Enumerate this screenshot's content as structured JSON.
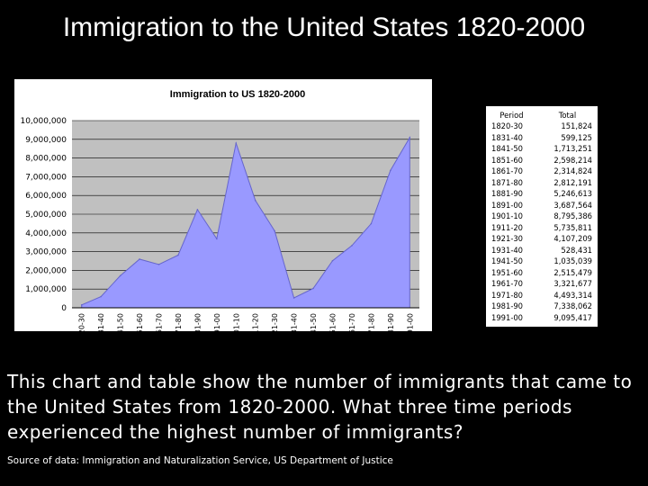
{
  "slide": {
    "title": "Immigration to the United States 1820-2000",
    "question": "This chart and table show the number of immigrants that came to the United States from 1820-2000.  What three time periods experienced the highest number of immigrants?",
    "source": "Source of data:  Immigration and Naturalization Service, US Department of Justice"
  },
  "colors": {
    "background": "#000000",
    "plot_area": "#c0c0c0",
    "area_fill": "#9999ff",
    "area_line": "#6666cc"
  },
  "chart_data": {
    "type": "area",
    "title": "Immigration to US 1820-2000",
    "xlabel": "",
    "ylabel": "",
    "ylim": [
      0,
      10000000
    ],
    "yticks": [
      0,
      1000000,
      2000000,
      3000000,
      4000000,
      5000000,
      6000000,
      7000000,
      8000000,
      9000000,
      10000000
    ],
    "ytick_labels": [
      "0",
      "1,000,000",
      "2,000,000",
      "3,000,000",
      "4,000,000",
      "5,000,000",
      "6,000,000",
      "7,000,000",
      "8,000,000",
      "9,000,000",
      "10,000,000"
    ],
    "grid": true,
    "legend": "none",
    "categories": [
      "1820-30",
      "1831-40",
      "1841-50",
      "1851-60",
      "1861-70",
      "1871-80",
      "1881-90",
      "1891-00",
      "1901-10",
      "1911-20",
      "1921-30",
      "1931-40",
      "1941-50",
      "1951-60",
      "1961-70",
      "1971-80",
      "1981-90",
      "1991-00"
    ],
    "values": [
      151824,
      599125,
      1713251,
      2598214,
      2314824,
      2812191,
      5246613,
      3687564,
      8795386,
      5735811,
      4107209,
      528431,
      1035039,
      2515479,
      3321677,
      4493314,
      7338062,
      9095417
    ]
  },
  "table": {
    "headers": [
      "Period",
      "Total"
    ],
    "rows": [
      [
        "1820-30",
        "151,824"
      ],
      [
        "1831-40",
        "599,125"
      ],
      [
        "1841-50",
        "1,713,251"
      ],
      [
        "1851-60",
        "2,598,214"
      ],
      [
        "1861-70",
        "2,314,824"
      ],
      [
        "1871-80",
        "2,812,191"
      ],
      [
        "1881-90",
        "5,246,613"
      ],
      [
        "1891-00",
        "3,687,564"
      ],
      [
        "1901-10",
        "8,795,386"
      ],
      [
        "1911-20",
        "5,735,811"
      ],
      [
        "1921-30",
        "4,107,209"
      ],
      [
        "1931-40",
        "528,431"
      ],
      [
        "1941-50",
        "1,035,039"
      ],
      [
        "1951-60",
        "2,515,479"
      ],
      [
        "1961-70",
        "3,321,677"
      ],
      [
        "1971-80",
        "4,493,314"
      ],
      [
        "1981-90",
        "7,338,062"
      ],
      [
        "1991-00",
        "9,095,417"
      ]
    ]
  }
}
